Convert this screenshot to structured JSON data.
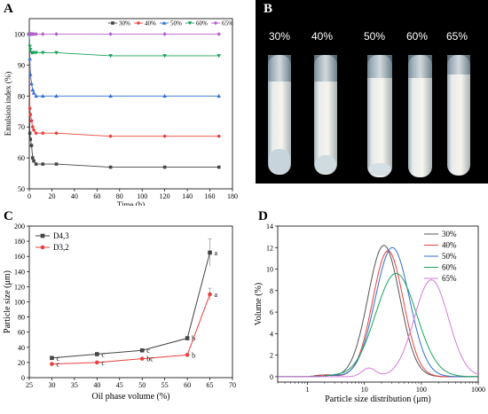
{
  "panels": {
    "a": "A",
    "b": "B",
    "c": "C",
    "d": "D"
  },
  "photo": {
    "tube_labels": [
      "30%",
      "40%",
      "50%",
      "60%",
      "65%"
    ]
  },
  "chart_data": [
    {
      "type": "line",
      "xlabel": "Time (h)",
      "ylabel": "Emulsion index (%)",
      "xlim": [
        0,
        180
      ],
      "ylim": [
        50,
        105
      ],
      "xticks": [
        0,
        20,
        40,
        60,
        80,
        100,
        120,
        140,
        160,
        180
      ],
      "yticks": [
        50,
        60,
        70,
        80,
        90,
        100
      ],
      "legend": "top-right",
      "series": [
        {
          "name": "30%",
          "color": "#444444",
          "marker": "square",
          "x": [
            0,
            0.5,
            1,
            2,
            3,
            4,
            6,
            12,
            24,
            72,
            120,
            168
          ],
          "y": [
            100,
            68,
            66,
            64,
            60,
            59,
            58,
            58,
            58,
            57,
            57,
            57
          ]
        },
        {
          "name": "40%",
          "color": "#e8413e",
          "marker": "circle",
          "x": [
            0,
            0.5,
            1,
            2,
            3,
            4,
            6,
            12,
            24,
            72,
            120,
            168
          ],
          "y": [
            100,
            76,
            74,
            72,
            70,
            69,
            68,
            68,
            68,
            67,
            67,
            67
          ]
        },
        {
          "name": "50%",
          "color": "#2f6fd0",
          "marker": "triangle-up",
          "x": [
            0,
            0.5,
            1,
            2,
            3,
            4,
            6,
            12,
            24,
            72,
            120,
            168
          ],
          "y": [
            100,
            92,
            87,
            84,
            82,
            81,
            80,
            80,
            80,
            80,
            80,
            80
          ]
        },
        {
          "name": "60%",
          "color": "#1aa35a",
          "marker": "triangle-down",
          "x": [
            0,
            0.5,
            1,
            2,
            3,
            4,
            6,
            12,
            24,
            72,
            120,
            168
          ],
          "y": [
            100,
            96,
            95,
            94,
            94,
            94,
            94,
            94,
            94,
            93,
            93,
            93
          ]
        },
        {
          "name": "65%",
          "color": "#b060c8",
          "marker": "diamond",
          "x": [
            0,
            0.5,
            1,
            2,
            3,
            4,
            6,
            12,
            24,
            72,
            120,
            168
          ],
          "y": [
            100,
            100,
            100,
            100,
            100,
            100,
            100,
            100,
            100,
            100,
            100,
            100
          ]
        }
      ]
    },
    {
      "type": "line",
      "xlabel": "Oil phase volume (%)",
      "ylabel": "Particle size (μm)",
      "xlim": [
        25,
        70
      ],
      "ylim": [
        0,
        200
      ],
      "xticks": [
        25,
        30,
        35,
        40,
        45,
        50,
        55,
        60,
        65,
        70
      ],
      "yticks": [
        0,
        20,
        40,
        60,
        80,
        100,
        120,
        140,
        160,
        180,
        200
      ],
      "legend": "top-left",
      "series": [
        {
          "name": "D4,3",
          "color": "#444444",
          "marker": "square",
          "x": [
            30,
            40,
            50,
            60,
            65
          ],
          "y": [
            26,
            31,
            36,
            52,
            165
          ],
          "err": [
            2,
            2,
            2,
            2,
            18
          ],
          "labels": [
            "c",
            "c",
            "c",
            "b",
            "a"
          ]
        },
        {
          "name": "D3,2",
          "color": "#e8413e",
          "marker": "circle",
          "x": [
            30,
            40,
            50,
            60,
            65
          ],
          "y": [
            18,
            20,
            25,
            30,
            110
          ],
          "err": [
            1,
            1,
            1,
            1,
            8
          ],
          "labels": [
            "c",
            "c",
            "bc",
            "b",
            "a"
          ]
        }
      ]
    },
    {
      "type": "line",
      "xlabel": "Particle size distribution (μm)",
      "ylabel": "Volume (%)",
      "xscale": "log",
      "xlim": [
        0.3,
        1000
      ],
      "ylim": [
        -0.5,
        14
      ],
      "xticks": [
        1,
        10,
        100,
        1000
      ],
      "yticks": [
        0,
        2,
        4,
        6,
        8,
        10,
        12,
        14
      ],
      "legend": "top-right",
      "series": [
        {
          "name": "30%",
          "color": "#555555",
          "mu": 22,
          "sigma": 0.28,
          "peak": 12.2,
          "bump": [
            1.8,
            0.15
          ]
        },
        {
          "name": "40%",
          "color": "#e8413e",
          "mu": 26,
          "sigma": 0.27,
          "peak": 11.7,
          "bump": [
            2.2,
            0.18
          ]
        },
        {
          "name": "50%",
          "color": "#2f6fd0",
          "mu": 31,
          "sigma": 0.3,
          "peak": 12.0,
          "bump": [
            2.6,
            0.12
          ]
        },
        {
          "name": "60%",
          "color": "#1aa35a",
          "mu": 36,
          "sigma": 0.36,
          "peak": 9.6,
          "bump": [
            3.0,
            0.1
          ]
        },
        {
          "name": "65%",
          "color": "#d57ad8",
          "mu": 150,
          "sigma": 0.3,
          "peak": 9.0,
          "bump": [
            12,
            0.8
          ]
        }
      ]
    }
  ]
}
